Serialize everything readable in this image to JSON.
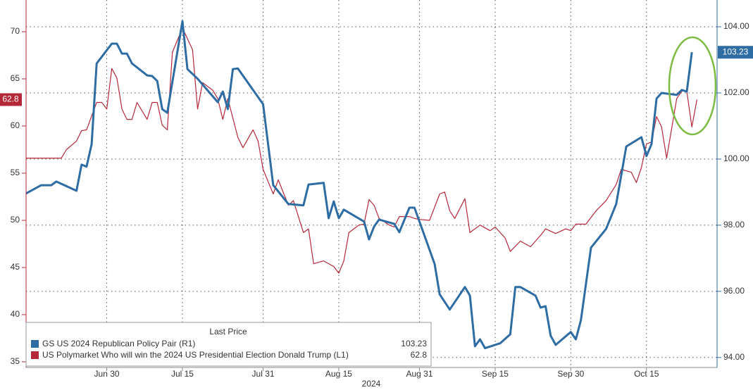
{
  "chart_data": {
    "type": "line",
    "x_label": "2024",
    "legend_title": "Last Price",
    "xlim": [
      "2024-06-14",
      "2024-10-29"
    ],
    "xticks": [
      {
        "value": "2024-06-30",
        "label": "Jun 30"
      },
      {
        "value": "2024-07-15",
        "label": "Jul 15"
      },
      {
        "value": "2024-07-31",
        "label": "Jul 31"
      },
      {
        "value": "2024-08-15",
        "label": "Aug 15"
      },
      {
        "value": "2024-08-31",
        "label": "Aug 31"
      },
      {
        "value": "2024-09-15",
        "label": "Sep 15"
      },
      {
        "value": "2024-09-30",
        "label": "Sep 30"
      },
      {
        "value": "2024-10-15",
        "label": "Oct 15"
      }
    ],
    "ylim": [
      34.55,
      73.36
    ],
    "yticks": [
      35,
      40,
      45,
      50,
      55,
      60,
      65,
      70
    ],
    "y2lim": [
      93.74,
      104.81
    ],
    "y2ticks": [
      {
        "value": 94,
        "label": "94.00"
      },
      {
        "value": 96,
        "label": "96.00"
      },
      {
        "value": 98,
        "label": "98.00"
      },
      {
        "value": 100,
        "label": "100.00"
      },
      {
        "value": 102,
        "label": "102.00"
      },
      {
        "value": 104,
        "label": "104.00"
      }
    ],
    "grid": true,
    "series": [
      {
        "name": "GS US 2024 Republican Policy Pair  (R1)",
        "color": "#2e6ca4",
        "axis": "y2",
        "x": [
          "2024-06-14",
          "2024-06-17",
          "2024-06-19",
          "2024-06-20",
          "2024-06-24",
          "2024-06-25",
          "2024-06-26",
          "2024-06-27",
          "2024-06-28",
          "2024-07-01",
          "2024-07-02",
          "2024-07-03",
          "2024-07-04",
          "2024-07-05",
          "2024-07-08",
          "2024-07-09",
          "2024-07-10",
          "2024-07-11",
          "2024-07-12",
          "2024-07-15",
          "2024-07-16",
          "2024-07-18",
          "2024-07-22",
          "2024-07-23",
          "2024-07-24",
          "2024-07-25",
          "2024-07-26",
          "2024-07-31",
          "2024-08-02",
          "2024-08-05",
          "2024-08-08",
          "2024-08-09",
          "2024-08-12",
          "2024-08-13",
          "2024-08-14",
          "2024-08-15",
          "2024-08-16",
          "2024-08-20",
          "2024-08-21",
          "2024-08-22",
          "2024-08-23",
          "2024-08-26",
          "2024-08-27",
          "2024-08-29",
          "2024-08-30",
          "2024-09-03",
          "2024-09-04",
          "2024-09-06",
          "2024-09-09",
          "2024-09-10",
          "2024-09-11",
          "2024-09-12",
          "2024-09-13",
          "2024-09-16",
          "2024-09-18",
          "2024-09-19",
          "2024-09-20",
          "2024-09-23",
          "2024-09-24",
          "2024-09-25",
          "2024-09-26",
          "2024-09-27",
          "2024-09-30",
          "2024-10-01",
          "2024-10-02",
          "2024-10-04",
          "2024-10-07",
          "2024-10-09",
          "2024-10-11",
          "2024-10-14",
          "2024-10-15",
          "2024-10-16",
          "2024-10-17",
          "2024-10-18",
          "2024-10-21",
          "2024-10-22",
          "2024-10-23",
          "2024-10-24"
        ],
        "values": [
          98.96,
          99.21,
          99.21,
          99.32,
          99.04,
          99.83,
          99.77,
          100.45,
          102.89,
          103.49,
          103.49,
          103.19,
          103.19,
          102.89,
          102.53,
          102.51,
          102.36,
          101.51,
          101.4,
          104.17,
          102.72,
          102.43,
          101.72,
          102.04,
          101.51,
          102.72,
          102.74,
          101.66,
          99.21,
          98.64,
          98.6,
          99.23,
          99.28,
          98.21,
          98.72,
          98.21,
          98.47,
          98.11,
          97.57,
          97.96,
          98.17,
          98.04,
          97.79,
          98.53,
          98.53,
          96.83,
          95.91,
          95.45,
          96.13,
          95.87,
          94.34,
          94.55,
          94.28,
          94.43,
          94.7,
          96.13,
          96.13,
          95.87,
          95.51,
          95.55,
          94.66,
          94.38,
          94.77,
          94.55,
          95.13,
          97.32,
          97.89,
          98.64,
          100.38,
          100.66,
          100.09,
          100.45,
          101.83,
          102.0,
          101.94,
          102.09,
          102.04,
          103.23
        ]
      },
      {
        "name": "US Polymarket Who will win the 2024 US Presidential Election Donald Trump  (L1)",
        "color": "#b5283a",
        "axis": "y",
        "x": [
          "2024-06-14",
          "2024-06-21",
          "2024-06-22",
          "2024-06-24",
          "2024-06-25",
          "2024-06-26",
          "2024-06-28",
          "2024-06-29",
          "2024-06-30",
          "2024-07-01",
          "2024-07-02",
          "2024-07-03",
          "2024-07-04",
          "2024-07-05",
          "2024-07-06",
          "2024-07-08",
          "2024-07-09",
          "2024-07-10",
          "2024-07-11",
          "2024-07-12",
          "2024-07-13",
          "2024-07-15",
          "2024-07-17",
          "2024-07-18",
          "2024-07-19",
          "2024-07-21",
          "2024-07-22",
          "2024-07-23",
          "2024-07-24",
          "2024-07-26",
          "2024-07-27",
          "2024-07-29",
          "2024-07-30",
          "2024-07-31",
          "2024-08-02",
          "2024-08-03",
          "2024-08-05",
          "2024-08-06",
          "2024-08-08",
          "2024-08-09",
          "2024-08-10",
          "2024-08-12",
          "2024-08-14",
          "2024-08-15",
          "2024-08-16",
          "2024-08-17",
          "2024-08-19",
          "2024-08-20",
          "2024-08-21",
          "2024-08-22",
          "2024-08-23",
          "2024-08-25",
          "2024-08-26",
          "2024-08-27",
          "2024-08-29",
          "2024-08-30",
          "2024-08-31",
          "2024-09-02",
          "2024-09-04",
          "2024-09-05",
          "2024-09-06",
          "2024-09-07",
          "2024-09-09",
          "2024-09-10",
          "2024-09-12",
          "2024-09-14",
          "2024-09-15",
          "2024-09-17",
          "2024-09-18",
          "2024-09-20",
          "2024-09-22",
          "2024-09-24",
          "2024-09-25",
          "2024-09-27",
          "2024-09-29",
          "2024-09-30",
          "2024-10-01",
          "2024-10-03",
          "2024-10-05",
          "2024-10-07",
          "2024-10-09",
          "2024-10-10",
          "2024-10-12",
          "2024-10-13",
          "2024-10-14",
          "2024-10-15",
          "2024-10-16",
          "2024-10-17",
          "2024-10-18",
          "2024-10-19",
          "2024-10-21",
          "2024-10-22",
          "2024-10-23",
          "2024-10-24",
          "2024-10-25"
        ],
        "values": [
          56.6,
          56.6,
          57.5,
          58.4,
          59.5,
          59.6,
          62.5,
          62.5,
          61.8,
          66.1,
          65.1,
          61.8,
          60.7,
          60.7,
          62.5,
          60.7,
          62.5,
          62.5,
          60.1,
          59.6,
          67.8,
          70.4,
          68.1,
          61.8,
          64.6,
          63.8,
          62.9,
          60.7,
          62.9,
          58.8,
          57.7,
          59.6,
          58.4,
          55.4,
          52.8,
          54.3,
          51.6,
          52.1,
          48.7,
          49.1,
          45.4,
          45.7,
          45.1,
          44.4,
          45.7,
          48.7,
          49.5,
          49.6,
          52.2,
          51.6,
          50.2,
          49.5,
          49.3,
          50.4,
          50.4,
          50.2,
          50.1,
          50.0,
          52.8,
          53.0,
          51.0,
          50.2,
          52.3,
          48.7,
          49.5,
          48.9,
          49.3,
          48.1,
          46.7,
          47.8,
          47.2,
          48.4,
          49.1,
          48.6,
          49.1,
          48.9,
          49.6,
          49.6,
          51.0,
          52.1,
          53.8,
          55.4,
          55.1,
          54.0,
          55.6,
          58.1,
          58.3,
          61.0,
          59.9,
          56.6,
          62.9,
          63.7,
          63.7,
          59.9,
          62.8
        ]
      }
    ]
  }
}
